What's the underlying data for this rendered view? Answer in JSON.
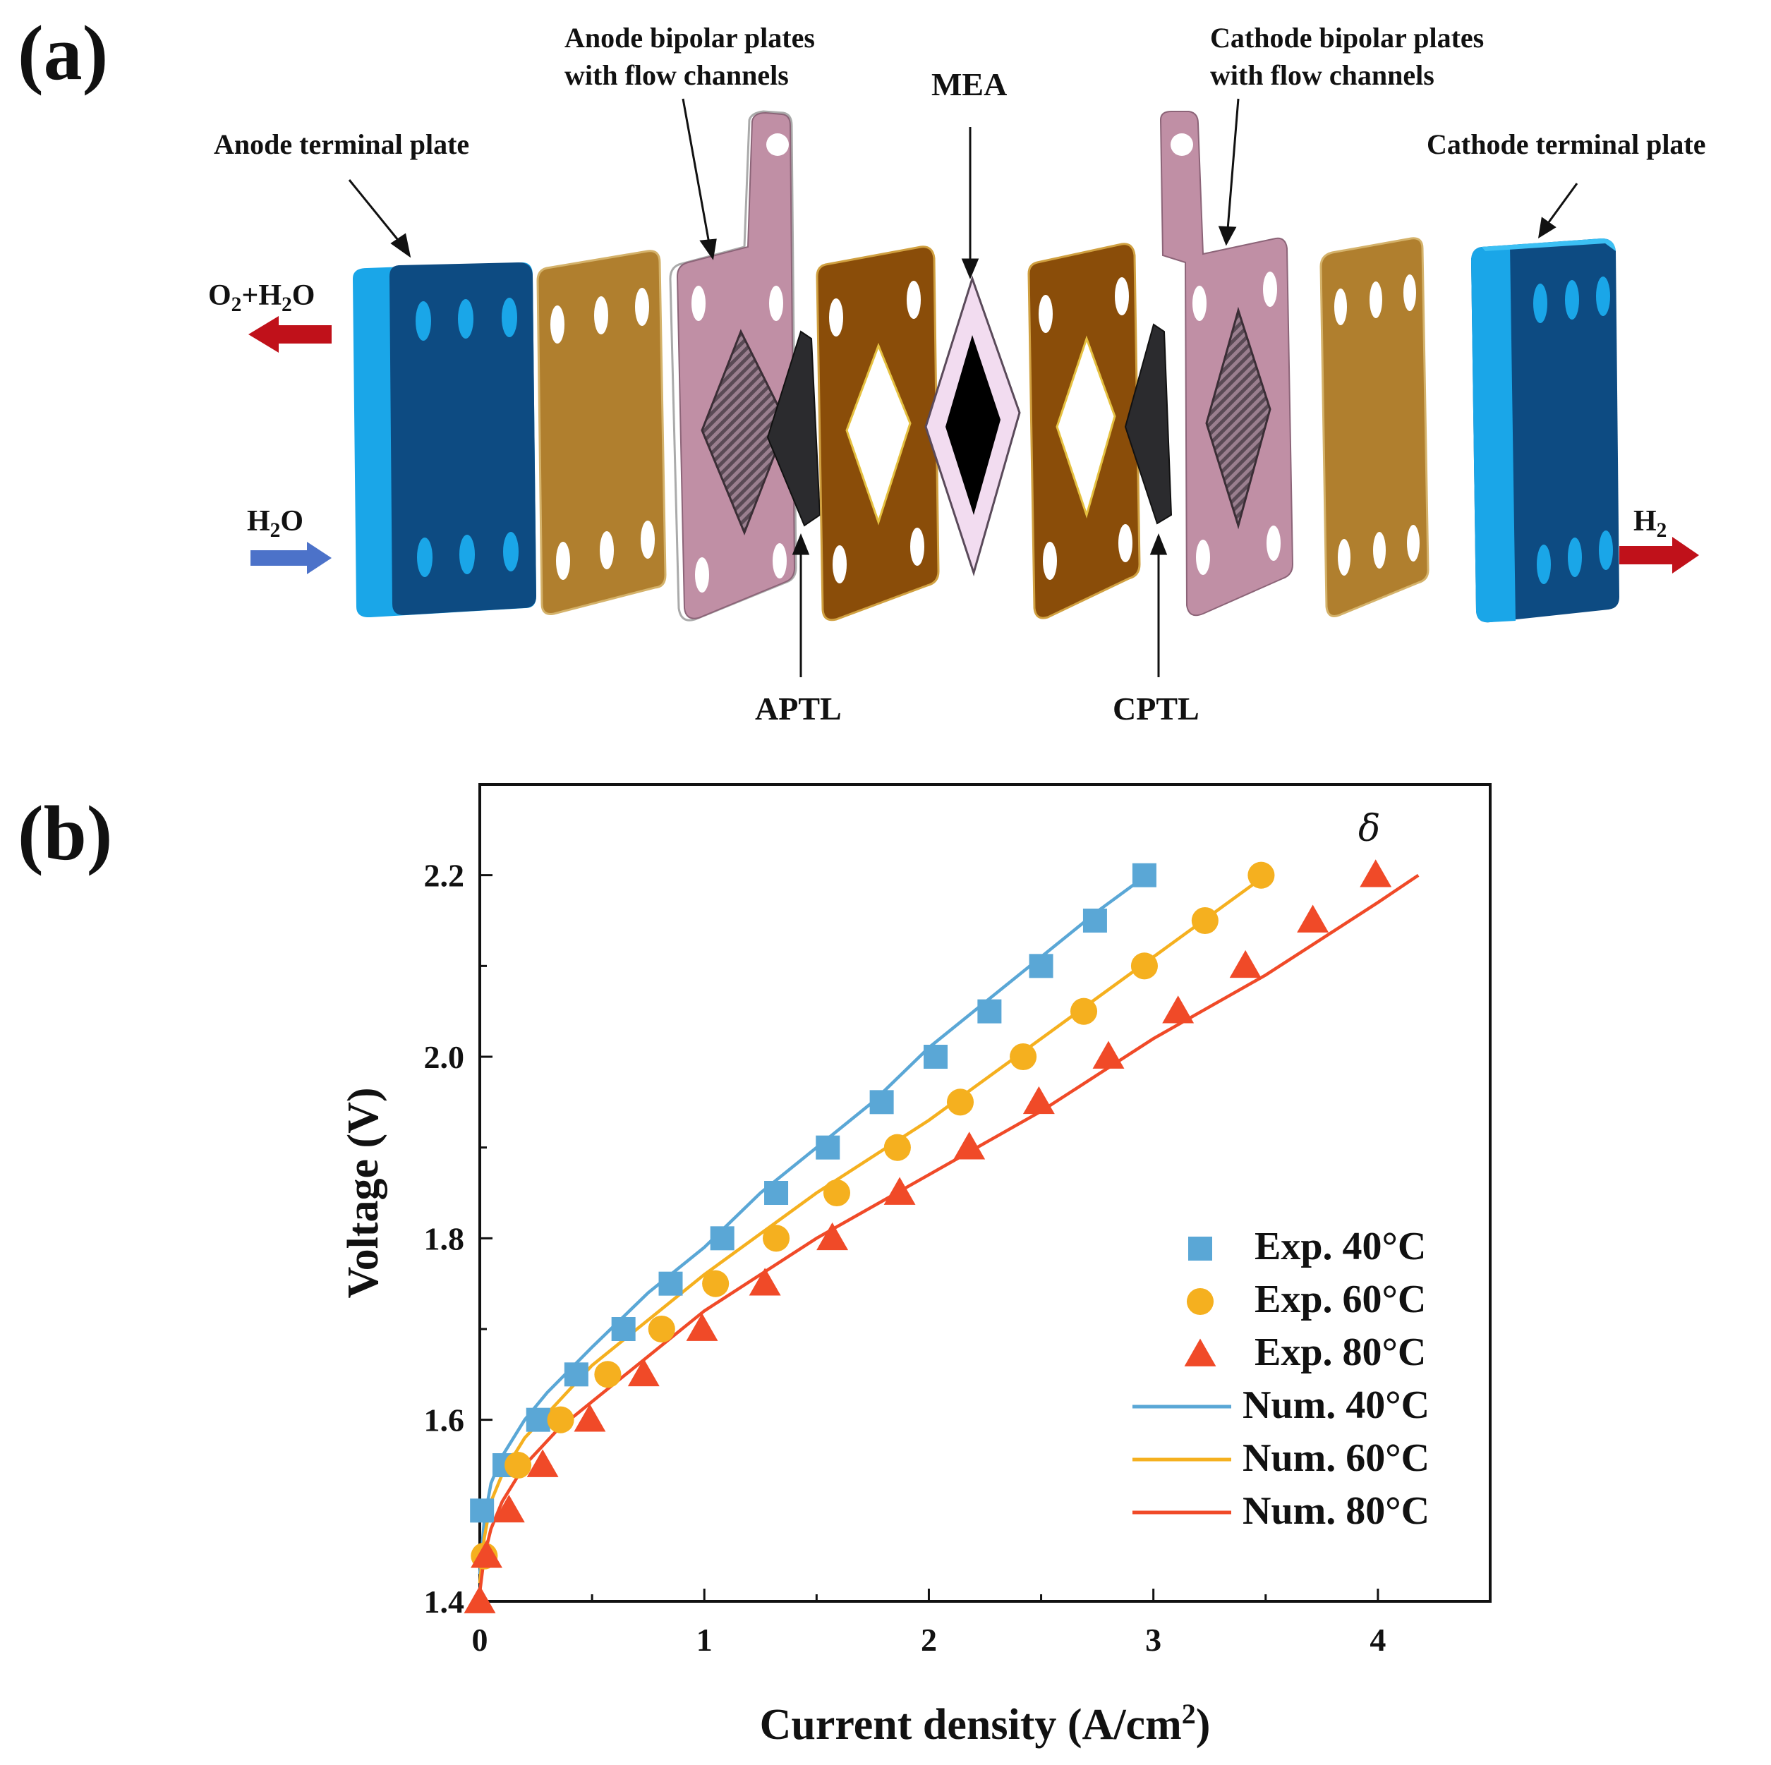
{
  "panel_a": {
    "tag": "(a)",
    "labels": {
      "anode_terminal": "Anode terminal  plate",
      "anode_bipolar_1": "Anode bipolar plates",
      "anode_bipolar_2": "with flow channels",
      "mea": "MEA",
      "cathode_bipolar_1": "Cathode bipolar plates",
      "cathode_bipolar_2": "with flow channels",
      "cathode_terminal": "Cathode terminal  plate",
      "aptl": "APTL",
      "cptl": "CPTL",
      "flow_out_anode": "O2+H2O",
      "flow_in_anode": "H2O",
      "flow_out_cathode": "H2"
    },
    "colors": {
      "terminal_face": "#0d4b82",
      "terminal_side": "#1aa6e8",
      "gasket": "#b07f2e",
      "bipolar": "#c08fa5",
      "frame": "#8a4d09",
      "ptl": "#2b2b2e",
      "mea_frame": "#f2dcf0",
      "arrow_out": "#c0111a",
      "arrow_in": "#4c72c9"
    }
  },
  "panel_b": {
    "tag": "(b)"
  },
  "chart_data": {
    "type": "scatter",
    "xlabel": "Current density (A/cm2)",
    "ylabel": "Voltage (V)",
    "xlim": [
      0,
      4.5
    ],
    "ylim": [
      1.4,
      2.3
    ],
    "xticks": [
      0,
      1,
      2,
      3,
      4
    ],
    "yticks": [
      1.4,
      1.6,
      1.8,
      2.0,
      2.2
    ],
    "annotation": "δ",
    "grid": false,
    "legend_position": "bottom-right",
    "series": [
      {
        "name": "Exp. 40°C",
        "kind": "markers",
        "marker": "square",
        "color": "#5aa7d6",
        "x": [
          0.01,
          0.11,
          0.26,
          0.43,
          0.64,
          0.85,
          1.08,
          1.32,
          1.55,
          1.79,
          2.03,
          2.27,
          2.5,
          2.74,
          2.96
        ],
        "y": [
          1.5,
          1.55,
          1.6,
          1.65,
          1.7,
          1.75,
          1.8,
          1.85,
          1.9,
          1.95,
          2.0,
          2.05,
          2.1,
          2.15,
          2.2
        ]
      },
      {
        "name": "Exp. 60°C",
        "kind": "markers",
        "marker": "circle",
        "color": "#f5b01f",
        "x": [
          0.02,
          0.17,
          0.36,
          0.57,
          0.81,
          1.05,
          1.32,
          1.59,
          1.86,
          2.14,
          2.42,
          2.69,
          2.96,
          3.23,
          3.48
        ],
        "y": [
          1.45,
          1.55,
          1.6,
          1.65,
          1.7,
          1.75,
          1.8,
          1.85,
          1.9,
          1.95,
          2.0,
          2.05,
          2.1,
          2.15,
          2.2
        ]
      },
      {
        "name": "Exp. 80°C",
        "kind": "markers",
        "marker": "triangle",
        "color": "#f04a28",
        "x": [
          0.0,
          0.03,
          0.13,
          0.28,
          0.49,
          0.73,
          0.99,
          1.27,
          1.57,
          1.87,
          2.18,
          2.49,
          2.8,
          3.11,
          3.41,
          3.71,
          3.99
        ],
        "y": [
          1.4,
          1.45,
          1.5,
          1.55,
          1.6,
          1.65,
          1.7,
          1.75,
          1.8,
          1.85,
          1.9,
          1.95,
          2.0,
          2.05,
          2.1,
          2.15,
          2.2
        ]
      },
      {
        "name": "Num. 40°C",
        "kind": "line",
        "color": "#5aa7d6",
        "x": [
          0.0,
          0.02,
          0.05,
          0.1,
          0.2,
          0.3,
          0.5,
          0.75,
          1.0,
          1.25,
          1.5,
          1.75,
          2.0,
          2.25,
          2.5,
          2.75,
          2.97
        ],
        "y": [
          1.43,
          1.49,
          1.53,
          1.56,
          1.6,
          1.63,
          1.68,
          1.74,
          1.79,
          1.85,
          1.9,
          1.95,
          2.01,
          2.06,
          2.11,
          2.16,
          2.2
        ]
      },
      {
        "name": "Num. 60°C",
        "kind": "line",
        "color": "#f5b01f",
        "x": [
          0.0,
          0.02,
          0.05,
          0.1,
          0.2,
          0.35,
          0.5,
          0.75,
          1.0,
          1.5,
          2.0,
          2.5,
          3.0,
          3.5
        ],
        "y": [
          1.42,
          1.47,
          1.51,
          1.54,
          1.58,
          1.62,
          1.66,
          1.71,
          1.76,
          1.85,
          1.93,
          2.02,
          2.11,
          2.2
        ]
      },
      {
        "name": "Num. 80°C",
        "kind": "line",
        "color": "#f04a28",
        "x": [
          0.0,
          0.02,
          0.05,
          0.1,
          0.2,
          0.35,
          0.5,
          0.75,
          1.0,
          1.5,
          2.0,
          2.5,
          3.0,
          3.5,
          4.0,
          4.18
        ],
        "y": [
          1.41,
          1.45,
          1.48,
          1.51,
          1.55,
          1.59,
          1.62,
          1.67,
          1.72,
          1.8,
          1.87,
          1.94,
          2.02,
          2.09,
          2.17,
          2.2
        ]
      }
    ]
  }
}
